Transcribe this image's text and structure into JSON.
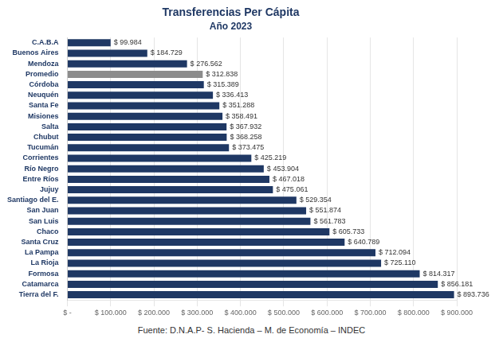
{
  "chart_data": {
    "type": "bar",
    "orientation": "horizontal",
    "title": "Transferencias Per Cápita",
    "subtitle": "Año 2023",
    "annotations": [
      "Fuente: D.N.A.P-  S. Hacienda – M. de Economía – INDEC"
    ],
    "categories": [
      "C.A.B.A",
      "Buenos Aires",
      "Mendoza",
      "Promedio",
      "Córdoba",
      "Neuquén",
      "Santa Fe",
      "Misiones",
      "Salta",
      "Chubut",
      "Tucumán",
      "Corrientes",
      "Río Negro",
      "Entre Ríos",
      "Jujuy",
      "Santiago del E.",
      "San Juan",
      "San Luis",
      "Chaco",
      "Santa Cruz",
      "La Pampa",
      "La Rioja",
      "Formosa",
      "Catamarca",
      "Tierra del F."
    ],
    "values": [
      99984,
      184729,
      276562,
      312838,
      315389,
      336413,
      351288,
      358491,
      367932,
      368258,
      373475,
      425219,
      453904,
      467018,
      475061,
      529354,
      551874,
      561783,
      605733,
      640789,
      712094,
      725110,
      814317,
      856181,
      893736
    ],
    "value_labels": [
      "$ 99.984",
      "$ 184.729",
      "$ 276.562",
      "$ 312.838",
      "$ 315.389",
      "$ 336.413",
      "$ 351.288",
      "$ 358.491",
      "$ 367.932",
      "$ 368.258",
      "$ 373.475",
      "$ 425.219",
      "$ 453.904",
      "$ 467.018",
      "$ 475.061",
      "$ 529.354",
      "$ 551.874",
      "$ 561.783",
      "$ 605.733",
      "$ 640.789",
      "$ 712.094",
      "$ 725.110",
      "$ 814.317",
      "$ 856.181",
      "$ 893.736"
    ],
    "colors": [
      "#1f3864",
      "#1f3864",
      "#1f3864",
      "#8c8c8c",
      "#1f3864",
      "#1f3864",
      "#1f3864",
      "#1f3864",
      "#1f3864",
      "#1f3864",
      "#1f3864",
      "#1f3864",
      "#1f3864",
      "#1f3864",
      "#1f3864",
      "#1f3864",
      "#1f3864",
      "#1f3864",
      "#1f3864",
      "#1f3864",
      "#1f3864",
      "#1f3864",
      "#1f3864",
      "#1f3864",
      "#1f3864"
    ],
    "xlim": [
      0,
      900000
    ],
    "xticks": [
      {
        "value": 0,
        "label": "$ -"
      },
      {
        "value": 100000,
        "label": "$ 100.000"
      },
      {
        "value": 200000,
        "label": "$ 200.000"
      },
      {
        "value": 300000,
        "label": "$ 300.000"
      },
      {
        "value": 400000,
        "label": "$ 400.000"
      },
      {
        "value": 500000,
        "label": "$ 500.000"
      },
      {
        "value": 600000,
        "label": "$ 600.000"
      },
      {
        "value": 700000,
        "label": "$ 700.000"
      },
      {
        "value": 800000,
        "label": "$ 800.000"
      },
      {
        "value": 900000,
        "label": "$ 900.000"
      }
    ],
    "grid": true,
    "data_labels": true
  }
}
